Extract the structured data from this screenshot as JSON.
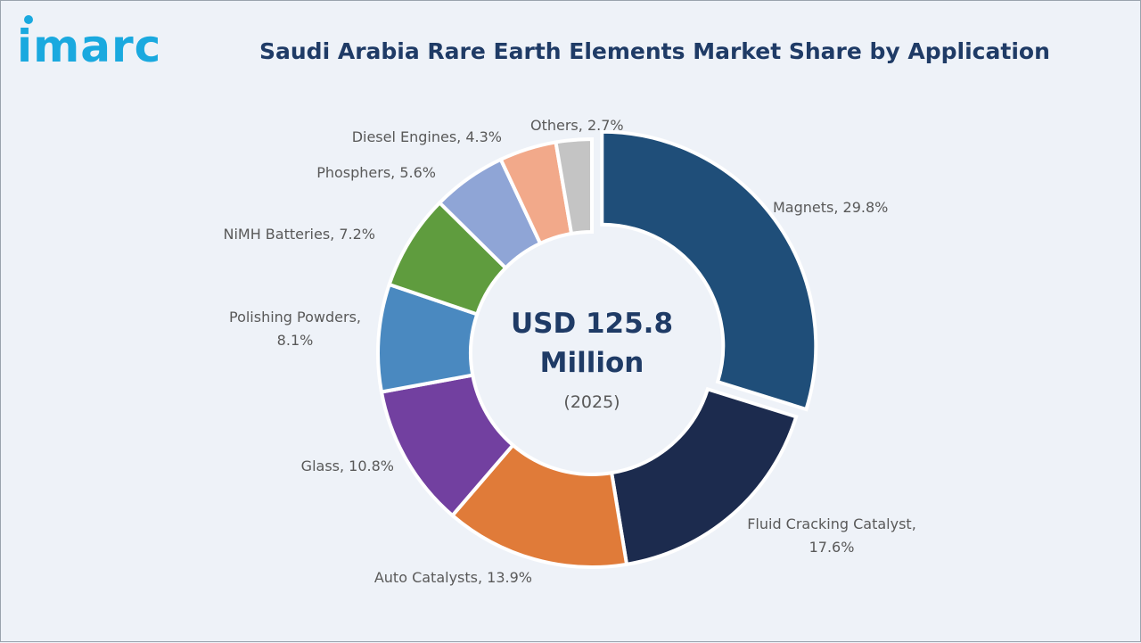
{
  "brand": {
    "logo_text": "imarc",
    "color": "#1aa9df"
  },
  "chart_data": {
    "type": "pie",
    "style": "donut",
    "title": "Saudi Arabia Rare Earth Elements Market Share by Application",
    "unit": "%",
    "center_value": "USD 125.8",
    "center_unit": "Million",
    "center_year": "(2025)",
    "slices": [
      {
        "name": "Magnets",
        "value": 29.8,
        "color": "#1f4e79",
        "label_lines": [
          "Magnets, 29.8%"
        ]
      },
      {
        "name": "Fluid Cracking Catalyst",
        "value": 17.6,
        "color": "#1c2b4e",
        "label_lines": [
          "Fluid Cracking Catalyst,",
          "17.6%"
        ]
      },
      {
        "name": "Auto Catalysts",
        "value": 13.9,
        "color": "#e07b39",
        "label_lines": [
          "Auto Catalysts, 13.9%"
        ]
      },
      {
        "name": "Glass",
        "value": 10.8,
        "color": "#7240a0",
        "label_lines": [
          "Glass, 10.8%"
        ]
      },
      {
        "name": "Polishing Powders",
        "value": 8.1,
        "color": "#4a89c0",
        "label_lines": [
          "Polishing Powders,",
          "8.1%"
        ]
      },
      {
        "name": "NiMH Batteries",
        "value": 7.2,
        "color": "#5f9c3e",
        "label_lines": [
          "NiMH Batteries, 7.2%"
        ]
      },
      {
        "name": "Phosphers",
        "value": 5.6,
        "color": "#8fa5d6",
        "label_lines": [
          "Phosphers, 5.6%"
        ]
      },
      {
        "name": "Diesel Engines",
        "value": 4.3,
        "color": "#f2a98a",
        "label_lines": [
          "Diesel Engines, 4.3%"
        ]
      },
      {
        "name": "Others",
        "value": 2.7,
        "color": "#c4c4c4",
        "label_lines": [
          "Others, 2.7%"
        ]
      }
    ]
  }
}
